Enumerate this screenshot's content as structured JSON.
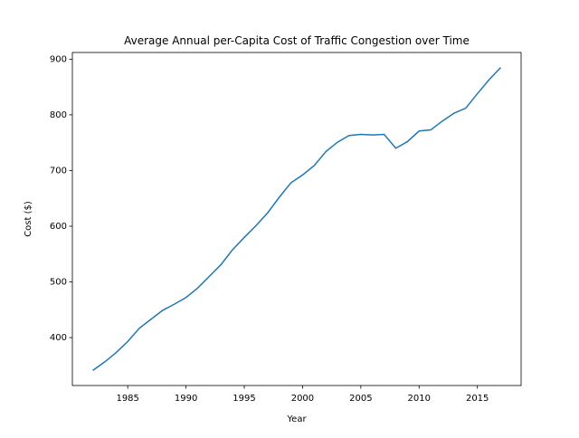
{
  "chart_data": {
    "type": "line",
    "title": "Average Annual per-Capita Cost of Traffic Congestion over Time",
    "x_label": "Year",
    "y_label": "Cost ($)",
    "x": [
      1982,
      1983,
      1984,
      1985,
      1986,
      1987,
      1988,
      1989,
      1990,
      1991,
      1992,
      1993,
      1994,
      1995,
      1996,
      1997,
      1998,
      1999,
      2000,
      2001,
      2002,
      2003,
      2004,
      2005,
      2006,
      2007,
      2008,
      2009,
      2010,
      2011,
      2012,
      2013,
      2014,
      2015,
      2016,
      2017
    ],
    "series": [
      {
        "color": "#1f77b4",
        "values": [
          341,
          356,
          373,
          393,
          417,
          433,
          449,
          460,
          472,
          489,
          510,
          531,
          558,
          580,
          601,
          624,
          652,
          678,
          692,
          709,
          734,
          751,
          763,
          765,
          764,
          765,
          740,
          752,
          771,
          773,
          789,
          803,
          812,
          838,
          863,
          885
        ]
      }
    ],
    "xlim": [
      1980.25,
      2018.75
    ],
    "xticks": [
      1985,
      1990,
      1995,
      2000,
      2005,
      2010,
      2015
    ],
    "ylim": [
      314,
      912
    ],
    "yticks": [
      400,
      500,
      600,
      700,
      800,
      900
    ]
  }
}
